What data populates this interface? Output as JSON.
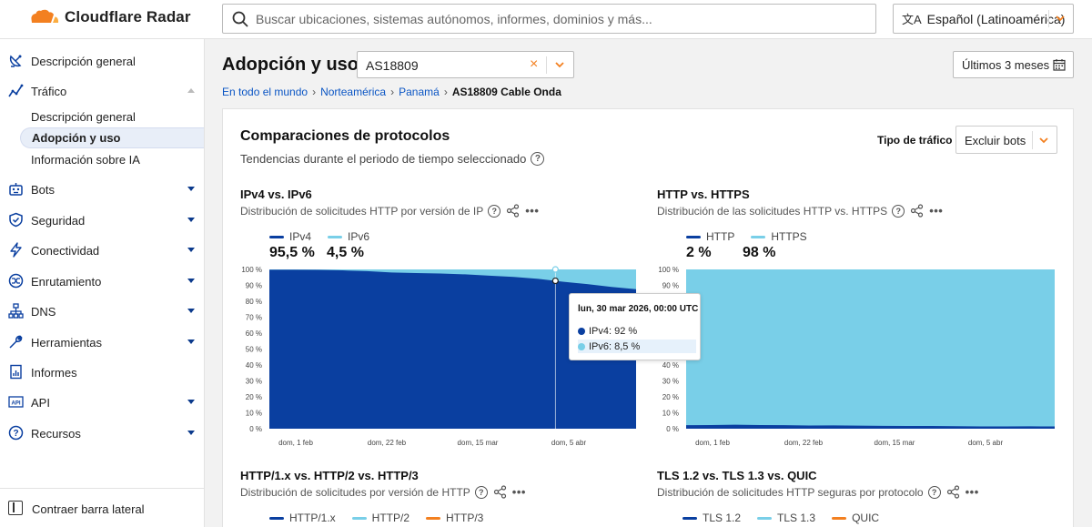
{
  "app": {
    "brand": "Cloudflare Radar",
    "search_placeholder": "Buscar ubicaciones, sistemas autónomos, informes, dominios y más...",
    "language": "Español (Latinoamérica)",
    "language_icon": "文A"
  },
  "sidebar": {
    "items": [
      {
        "label": "Descripción general",
        "icon": "satellite-dish-icon"
      },
      {
        "label": "Tráfico",
        "icon": "traffic-chart-icon"
      },
      {
        "label": "Bots",
        "icon": "robot-icon"
      },
      {
        "label": "Seguridad",
        "icon": "shield-icon"
      },
      {
        "label": "Conectividad",
        "icon": "lightning-icon"
      },
      {
        "label": "Enrutamiento",
        "icon": "routing-icon"
      },
      {
        "label": "DNS",
        "icon": "dns-tree-icon"
      },
      {
        "label": "Herramientas",
        "icon": "wrench-icon"
      },
      {
        "label": "Informes",
        "icon": "report-icon"
      },
      {
        "label": "API",
        "icon": "api-icon"
      },
      {
        "label": "Recursos",
        "icon": "help-circle-icon"
      }
    ],
    "traffic_sub": [
      "Descripción general",
      "Adopción y uso",
      "Información sobre IA"
    ],
    "collapse_label": "Contraer barra lateral"
  },
  "header": {
    "title": "Adopción y uso",
    "asn_value": "AS18809",
    "asn_clear": "×",
    "date_range": "Últimos 3 meses",
    "breadcrumb": [
      "En todo el mundo",
      "Norteamérica",
      "Panamá"
    ],
    "breadcrumb_current": "AS18809 Cable Onda"
  },
  "card": {
    "title": "Comparaciones de protocolos",
    "subtitle": "Tendencias durante el periodo de tiempo seleccionado",
    "traffic_label": "Tipo de tráfico",
    "traffic_value": "Excluir bots"
  },
  "charts": {
    "ipv": {
      "title": "IPv4 vs. IPv6",
      "desc": "Distribución de solicitudes HTTP por versión de IP",
      "legend": [
        "IPv4",
        "IPv6"
      ],
      "values": [
        "95,5 %",
        "4,5 %"
      ]
    },
    "http": {
      "title": "HTTP vs. HTTPS",
      "desc": "Distribución de las solicitudes HTTP vs. HTTPS",
      "legend": [
        "HTTP",
        "HTTPS"
      ],
      "values": [
        "2 %",
        "98 %"
      ]
    },
    "httpver": {
      "title": "HTTP/1.x vs. HTTP/2 vs. HTTP/3",
      "desc": "Distribución de solicitudes por versión de HTTP",
      "legend": [
        "HTTP/1.x",
        "HTTP/2",
        "HTTP/3"
      ]
    },
    "tls": {
      "title": "TLS 1.2 vs. TLS 1.3 vs. QUIC",
      "desc": "Distribución de solicitudes HTTP seguras por protocolo",
      "legend": [
        "TLS 1.2",
        "TLS 1.3",
        "QUIC"
      ]
    },
    "more_icon": "•••",
    "help_icon": "?"
  },
  "tooltip": {
    "title": "lun, 30 mar 2026, 00:00 UTC",
    "rows": [
      "IPv4: 92 %",
      "IPv6: 8,5 %"
    ]
  },
  "colors": {
    "dark_blue": "#0a3fa0",
    "light_blue": "#79cfe8",
    "orange": "#f38020",
    "link": "#0a55c4"
  },
  "chart_data": [
    {
      "type": "area",
      "title": "IPv4 vs. IPv6",
      "x_ticks": [
        "dom, 1 feb",
        "dom, 22 feb",
        "dom, 15 mar",
        "dom, 5 abr"
      ],
      "y_ticks": [
        "0 %",
        "10 %",
        "20 %",
        "30 %",
        "40 %",
        "50 %",
        "60 %",
        "70 %",
        "80 %",
        "90 %",
        "100 %"
      ],
      "ylim": [
        0,
        100
      ],
      "x": [
        0,
        2,
        4,
        6,
        8,
        10,
        12,
        14,
        16,
        18,
        20,
        22,
        24,
        26,
        28,
        30
      ],
      "series": [
        {
          "name": "IPv4",
          "values": [
            99.8,
            99.8,
            99.7,
            99.4,
            98.9,
            98.1,
            97.7,
            97.4,
            96.9,
            96.1,
            95.3,
            94.1,
            92.3,
            90.8,
            89.0,
            87.6
          ]
        },
        {
          "name": "IPv6",
          "values": [
            0.2,
            0.2,
            0.3,
            0.6,
            1.1,
            1.9,
            2.3,
            2.6,
            3.1,
            3.9,
            4.7,
            5.9,
            7.7,
            9.2,
            11.0,
            12.4
          ]
        }
      ],
      "tooltip_index": 23.4
    },
    {
      "type": "area",
      "title": "HTTP vs. HTTPS",
      "x_ticks": [
        "dom, 1 feb",
        "dom, 22 feb",
        "dom, 15 mar",
        "dom, 5 abr"
      ],
      "y_ticks": [
        "0 %",
        "10 %",
        "20 %",
        "30 %",
        "40 %",
        "50 %",
        "60 %",
        "70 %",
        "80 %",
        "90 %",
        "100 %"
      ],
      "ylim": [
        0,
        100
      ],
      "x": [
        0,
        2,
        4,
        6,
        8,
        10,
        12,
        14,
        16,
        18,
        20,
        22,
        24,
        26,
        28,
        30
      ],
      "series": [
        {
          "name": "HTTP",
          "values": [
            2.2,
            2.3,
            2.5,
            2.3,
            2.2,
            2.0,
            2.1,
            1.9,
            1.8,
            1.7,
            1.7,
            1.6,
            1.4,
            1.4,
            1.5,
            1.4
          ]
        },
        {
          "name": "HTTPS",
          "values": [
            97.8,
            97.7,
            97.5,
            97.7,
            97.8,
            98.0,
            97.9,
            98.1,
            98.2,
            98.3,
            98.3,
            98.4,
            98.6,
            98.6,
            98.5,
            98.6
          ]
        }
      ]
    }
  ]
}
